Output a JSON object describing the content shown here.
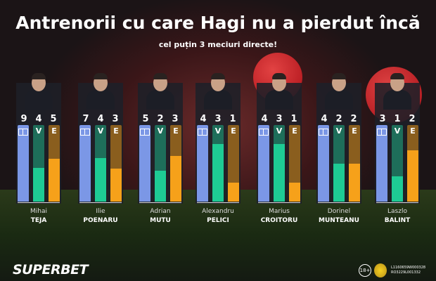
{
  "title": "Antrenorii cu care Hagi nu a pierdut încă",
  "subtitle": "cel puțin 3 meciuri directe!",
  "labels": {
    "wins": "V",
    "draws": "E"
  },
  "colors": {
    "matches": "#7b97e6",
    "wins": "#1ecb94",
    "draws": "#f6a11a"
  },
  "coaches": [
    {
      "first": "Mihai",
      "last": "TEJA",
      "matches": "9",
      "wins": "4",
      "draws": "5"
    },
    {
      "first": "Ilie",
      "last": "POENARU",
      "matches": "7",
      "wins": "4",
      "draws": "3"
    },
    {
      "first": "Adrian",
      "last": "MUTU",
      "matches": "5",
      "wins": "2",
      "draws": "3"
    },
    {
      "first": "Alexandru",
      "last": "PELICI",
      "matches": "4",
      "wins": "3",
      "draws": "1"
    },
    {
      "first": "Marius",
      "last": "CROITORU",
      "matches": "4",
      "wins": "3",
      "draws": "1"
    },
    {
      "first": "Dorinel",
      "last": "MUNTEANU",
      "matches": "4",
      "wins": "2",
      "draws": "2"
    },
    {
      "first": "Laszlo",
      "last": "BALINT",
      "matches": "3",
      "wins": "1",
      "draws": "2"
    }
  ],
  "footer": {
    "brand": "SUPERBET",
    "age": "18+",
    "license1": "L1160659W000328",
    "license2": "RO3229L001332"
  }
}
